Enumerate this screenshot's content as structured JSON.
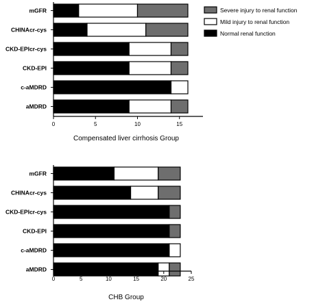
{
  "chart_data": [
    {
      "type": "bar",
      "orientation": "horizontal",
      "stacked": true,
      "title": "",
      "xlabel": "Compensated liver cirrhosis Group",
      "ylabel": "",
      "xlim": [
        0,
        16
      ],
      "xticks": [
        0,
        5,
        10,
        15
      ],
      "categories": [
        "mGFR",
        "CHINAcr-cys",
        "CKD-EPIcr-cys",
        "CKD-EPI",
        "c-aMDRD",
        "aMDRD"
      ],
      "series": [
        {
          "name": "Normal renal function",
          "color": "#000000",
          "values": [
            3,
            4,
            9,
            9,
            14,
            9
          ]
        },
        {
          "name": "Mild injury to renal function",
          "color": "#ffffff",
          "values": [
            7,
            7,
            5,
            5,
            2,
            5
          ]
        },
        {
          "name": "Severe injury to renal function",
          "color": "#6e6e6e",
          "values": [
            6,
            5,
            2,
            2,
            0,
            2
          ]
        }
      ],
      "legend": {
        "position": "right",
        "items": [
          "Severe injury to renal function",
          "Mild injury to renal function",
          "Normal renal function"
        ]
      }
    },
    {
      "type": "bar",
      "orientation": "horizontal",
      "stacked": true,
      "title": "",
      "xlabel": "CHB Group",
      "ylabel": "",
      "xlim": [
        0,
        25
      ],
      "xticks": [
        0,
        5,
        10,
        15,
        20,
        25
      ],
      "categories": [
        "mGFR",
        "CHINAcr-cys",
        "CKD-EPIcr-cys",
        "CKD-EPI",
        "c-aMDRD",
        "aMDRD"
      ],
      "series": [
        {
          "name": "Normal renal function",
          "color": "#000000",
          "values": [
            11,
            14,
            21,
            21,
            21,
            19
          ]
        },
        {
          "name": "Mild injury to renal function",
          "color": "#ffffff",
          "values": [
            8,
            5,
            0,
            0,
            2,
            2
          ]
        },
        {
          "name": "Severe injury to renal function",
          "color": "#6e6e6e",
          "values": [
            4,
            4,
            2,
            2,
            0,
            2
          ]
        }
      ]
    }
  ]
}
